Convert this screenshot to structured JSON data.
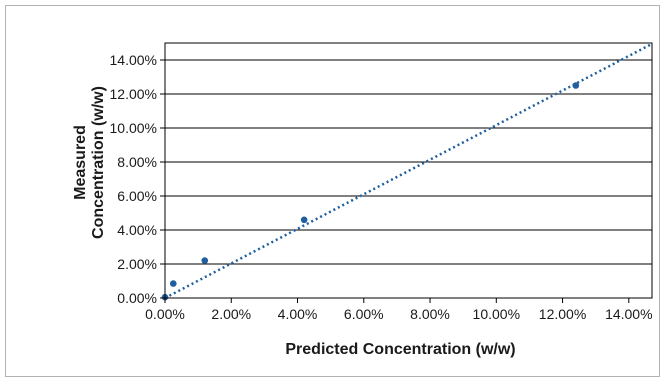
{
  "chart_data": {
    "type": "scatter",
    "title": "",
    "xlabel": "Predicted Concentration (w/w)",
    "ylabel_lines": [
      "Measured",
      "Concentration (w/w)"
    ],
    "xlim": [
      0,
      14.7
    ],
    "ylim": [
      0,
      15
    ],
    "x_ticks": [
      0,
      2,
      4,
      6,
      8,
      10,
      12,
      14
    ],
    "y_ticks": [
      0,
      2,
      4,
      6,
      8,
      10,
      12,
      14
    ],
    "x_tick_labels": [
      "0.00%",
      "2.00%",
      "4.00%",
      "6.00%",
      "8.00%",
      "10.00%",
      "12.00%",
      "14.00%"
    ],
    "y_tick_labels": [
      "0.00%",
      "2.00%",
      "4.00%",
      "6.00%",
      "8.00%",
      "10.00%",
      "12.00%",
      "14.00%"
    ],
    "grid": "horizontal",
    "colors": {
      "marker": "#1f5fa0",
      "trendline": "#1f5fa0",
      "grid": "#000000"
    },
    "series": [
      {
        "points": [
          {
            "x": 0.0,
            "y": 0.05
          },
          {
            "x": 0.25,
            "y": 0.85
          },
          {
            "x": 1.2,
            "y": 2.2
          },
          {
            "x": 4.2,
            "y": 4.6
          },
          {
            "x": 12.4,
            "y": 12.5
          }
        ]
      }
    ],
    "trendline": {
      "style": "dotted",
      "x": [
        0,
        14.7
      ],
      "y": [
        0,
        14.95
      ]
    }
  }
}
